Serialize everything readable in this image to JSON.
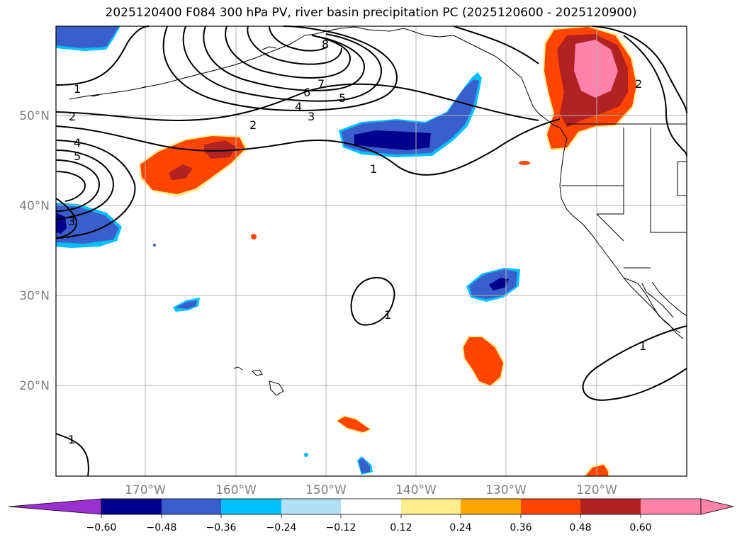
{
  "title": "2025120400 F084 300 hPa PV, river basin precipitation PC (2025120600 - 2025120900)",
  "lat_labels": [
    "50°N",
    "40°N",
    "30°N",
    "20°N"
  ],
  "lon_labels": [
    "170°W",
    "160°W",
    "150°W",
    "140°W",
    "130°W",
    "120°W"
  ],
  "colorbar": {
    "ticks": [
      "−0.60",
      "−0.48",
      "−0.36",
      "−0.24",
      "−0.12",
      "0.12",
      "0.24",
      "0.36",
      "0.48",
      "0.60"
    ],
    "colors": [
      "#9b30d0",
      "#00008b",
      "#3a5fcd",
      "#00bfff",
      "#b0e0f8",
      "#ffffff",
      "#ffec8b",
      "#ffa500",
      "#ff4500",
      "#b22222",
      "#ff82ab"
    ]
  },
  "contour_labels": [
    "1",
    "2",
    "4",
    "5",
    "3",
    "8",
    "7",
    "6",
    "5",
    "4",
    "3",
    "2",
    "1",
    "1",
    "2",
    "1",
    "1"
  ],
  "colors": {
    "grid": "#b0b0b0",
    "axis_label": "#808080",
    "contour": "#000000",
    "coast": "#000000"
  }
}
